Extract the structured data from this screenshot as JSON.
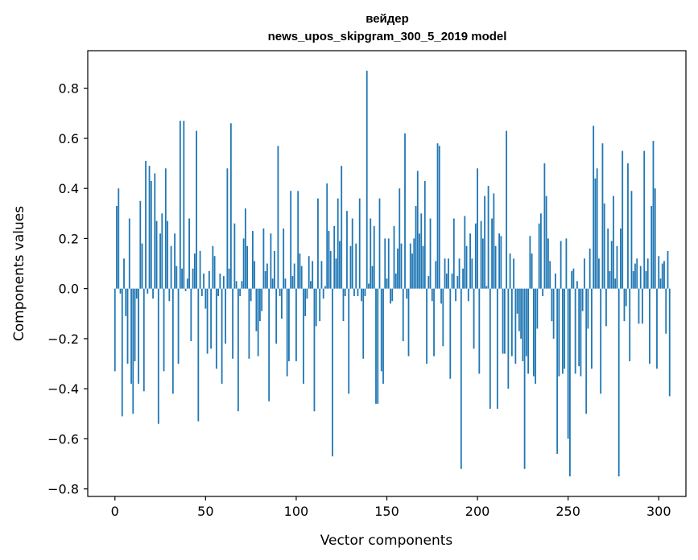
{
  "chart_data": {
    "type": "bar",
    "title": "вейдер",
    "subtitle": "news_upos_skipgram_300_5_2019 model",
    "xlabel": "Vector components",
    "ylabel": "Components values",
    "xlim": [
      -15,
      315
    ],
    "ylim": [
      -0.83,
      0.95
    ],
    "xticks": [
      0,
      50,
      100,
      150,
      200,
      250,
      300
    ],
    "xtick_labels": [
      "0",
      "50",
      "100",
      "150",
      "200",
      "250",
      "300"
    ],
    "yticks": [
      0.8,
      0.6,
      0.4,
      0.2,
      0.0,
      -0.2,
      -0.4,
      -0.6,
      -0.8
    ],
    "ytick_labels": [
      "0.8",
      "0.6",
      "0.4",
      "0.2",
      "0.0",
      "−0.2",
      "−0.4",
      "−0.6",
      "−0.8"
    ],
    "grid": false,
    "bar_color": "#1f77b4",
    "values": [
      -0.33,
      0.33,
      0.4,
      -0.02,
      -0.51,
      0.12,
      -0.11,
      -0.3,
      0.28,
      -0.38,
      -0.5,
      -0.29,
      -0.04,
      -0.38,
      0.35,
      0.18,
      -0.41,
      0.51,
      -0.02,
      0.49,
      0.43,
      -0.04,
      0.46,
      0.27,
      -0.54,
      0.22,
      0.3,
      -0.33,
      0.48,
      0.27,
      -0.05,
      0.17,
      -0.42,
      0.22,
      0.09,
      -0.3,
      0.67,
      0.08,
      0.67,
      -0.01,
      0.04,
      0.28,
      -0.21,
      0.08,
      0.14,
      0.63,
      -0.53,
      0.15,
      -0.03,
      0.06,
      -0.08,
      -0.26,
      0.07,
      -0.24,
      0.17,
      0.13,
      -0.32,
      -0.03,
      0.06,
      -0.38,
      0.05,
      -0.22,
      0.48,
      0.08,
      0.66,
      -0.28,
      0.26,
      0.03,
      -0.49,
      -0.03,
      0.03,
      0.2,
      0.32,
      0.17,
      -0.28,
      -0.05,
      0.23,
      0.11,
      -0.17,
      -0.27,
      -0.13,
      -0.09,
      0.24,
      0.07,
      0.1,
      -0.45,
      0.22,
      0.04,
      0.15,
      -0.22,
      0.57,
      -0.03,
      -0.12,
      0.24,
      0.04,
      -0.35,
      -0.29,
      0.39,
      0.05,
      0.1,
      -0.29,
      0.39,
      0.14,
      0.09,
      -0.38,
      -0.11,
      -0.04,
      0.13,
      0.03,
      0.11,
      -0.49,
      -0.15,
      0.36,
      -0.13,
      0.11,
      -0.04,
      0.01,
      0.42,
      0.23,
      0.15,
      -0.67,
      0.25,
      0.12,
      0.36,
      0.19,
      0.49,
      -0.13,
      -0.03,
      0.31,
      -0.42,
      0.17,
      0.28,
      -0.03,
      0.18,
      -0.03,
      0.36,
      -0.05,
      -0.28,
      -0.03,
      0.87,
      0.02,
      0.28,
      0.09,
      0.25,
      -0.46,
      -0.46,
      0.36,
      -0.33,
      -0.38,
      0.2,
      0.04,
      0.2,
      -0.06,
      -0.05,
      0.25,
      0.06,
      0.16,
      0.4,
      0.18,
      -0.21,
      0.62,
      -0.04,
      -0.27,
      0.18,
      0.14,
      0.2,
      0.33,
      0.47,
      0.22,
      0.3,
      0.17,
      0.43,
      -0.3,
      0.05,
      0.28,
      -0.05,
      -0.27,
      0.11,
      0.58,
      0.57,
      -0.06,
      -0.23,
      0.12,
      0.06,
      0.12,
      -0.36,
      0.06,
      0.28,
      -0.05,
      0.05,
      0.12,
      -0.72,
      0.08,
      0.29,
      0.17,
      -0.05,
      0.22,
      0.12,
      -0.24,
      0.26,
      0.48,
      -0.34,
      0.27,
      0.2,
      0.37,
      0.01,
      0.41,
      -0.48,
      0.28,
      0.38,
      0.17,
      -0.48,
      0.22,
      0.21,
      -0.26,
      -0.26,
      0.63,
      -0.4,
      0.14,
      -0.27,
      0.12,
      -0.3,
      -0.1,
      -0.17,
      -0.2,
      -0.29,
      -0.72,
      -0.27,
      -0.34,
      0.21,
      0.14,
      -0.35,
      -0.38,
      -0.16,
      0.26,
      0.3,
      -0.03,
      0.5,
      0.37,
      0.2,
      0.11,
      -0.13,
      -0.2,
      0.06,
      -0.66,
      -0.35,
      0.19,
      -0.34,
      -0.32,
      0.2,
      -0.6,
      -0.75,
      0.07,
      0.08,
      -0.34,
      0.03,
      -0.31,
      -0.35,
      -0.09,
      0.12,
      -0.5,
      -0.16,
      0.16,
      -0.32,
      0.65,
      0.44,
      0.48,
      0.12,
      -0.42,
      0.58,
      0.34,
      -0.15,
      0.24,
      0.07,
      0.19,
      0.37,
      0.04,
      0.17,
      -0.75,
      0.24,
      0.55,
      -0.13,
      -0.07,
      0.5,
      -0.29,
      0.39,
      0.07,
      0.1,
      0.12,
      -0.14,
      0.09,
      -0.14,
      0.55,
      0.07,
      0.12,
      -0.3,
      0.33,
      0.59,
      0.4,
      -0.32,
      0.13,
      0.04,
      0.1,
      0.11,
      -0.18,
      0.15,
      -0.43
    ]
  }
}
